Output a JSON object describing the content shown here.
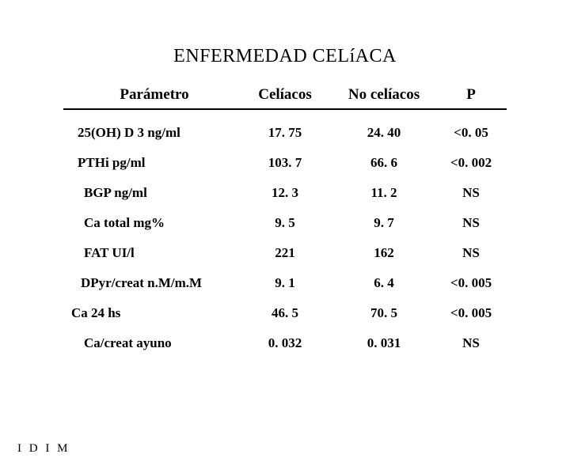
{
  "title": "ENFERMEDAD CELíACA",
  "footer": "I D I M",
  "table": {
    "headers": {
      "param": "Parámetro",
      "celiacos": "Celíacos",
      "no_celiacos": "No celíacos",
      "p": "P"
    },
    "rows": [
      {
        "param": "25(OH) D 3  ng/ml",
        "indent": "indent-1",
        "celiacos": "17. 75",
        "no_celiacos": "24. 40",
        "p": "<0. 05"
      },
      {
        "param": "PTHi   pg/ml",
        "indent": "indent-1",
        "celiacos": "103. 7",
        "no_celiacos": "66. 6",
        "p": "<0. 002"
      },
      {
        "param": "BGP     ng/ml",
        "indent": "indent-2",
        "celiacos": "12. 3",
        "no_celiacos": "11. 2",
        "p": "NS"
      },
      {
        "param": "Ca total    mg%",
        "indent": "indent-2",
        "celiacos": "9. 5",
        "no_celiacos": "9. 7",
        "p": "NS"
      },
      {
        "param": "FAT      UI/l",
        "indent": "indent-2",
        "celiacos": "221",
        "no_celiacos": "162",
        "p": "NS"
      },
      {
        "param": "DPyr/creat n.M/m.M",
        "indent": "indent-3",
        "celiacos": "9. 1",
        "no_celiacos": "6. 4",
        "p": "<0. 005"
      },
      {
        "param": "Ca 24 hs",
        "indent": "indent-0",
        "celiacos": "46. 5",
        "no_celiacos": "70. 5",
        "p": "<0. 005"
      },
      {
        "param": "Ca/creat ayuno",
        "indent": "indent-2",
        "celiacos": "0. 032",
        "no_celiacos": "0. 031",
        "p": "NS"
      }
    ]
  },
  "style": {
    "background_color": "#ffffff",
    "text_color": "#000000",
    "rule_color": "#000000",
    "title_fontsize": 24,
    "header_fontsize": 19,
    "body_fontsize": 17,
    "font_family": "Times New Roman"
  }
}
